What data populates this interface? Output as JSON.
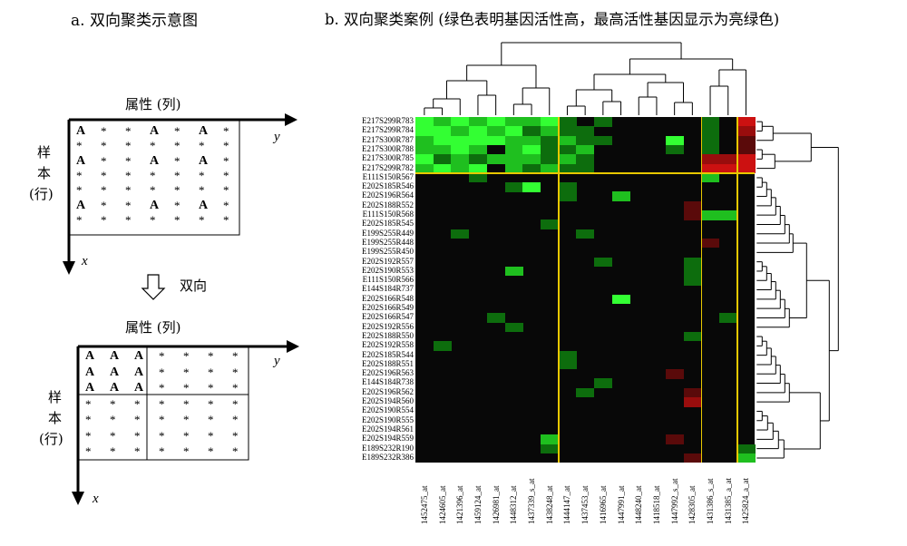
{
  "panel_a": {
    "title": "a. 双向聚类示意图",
    "top": {
      "attr_label": "属性 (列)",
      "sample_label_1": "样",
      "sample_label_2": "本",
      "sample_label_3": "(行)",
      "x_label": "x",
      "y_label": "y",
      "grid": [
        [
          "A",
          "*",
          "*",
          "A",
          "*",
          "A",
          "*"
        ],
        [
          "*",
          "*",
          "*",
          "*",
          "*",
          "*",
          "*"
        ],
        [
          "A",
          "*",
          "*",
          "A",
          "*",
          "A",
          "*"
        ],
        [
          "*",
          "*",
          "*",
          "*",
          "*",
          "*",
          "*"
        ],
        [
          "*",
          "*",
          "*",
          "*",
          "*",
          "*",
          "*"
        ],
        [
          "A",
          "*",
          "*",
          "A",
          "*",
          "A",
          "*"
        ],
        [
          "*",
          "*",
          "*",
          "*",
          "*",
          "*",
          "*"
        ]
      ]
    },
    "arrow_label": "双向",
    "bottom": {
      "attr_label": "属性 (列)",
      "sample_label_1": "样",
      "sample_label_2": "本",
      "sample_label_3": "(行)",
      "x_label": "x",
      "y_label": "y",
      "grid": [
        [
          "A",
          "A",
          "A",
          "*",
          "*",
          "*",
          "*"
        ],
        [
          "A",
          "A",
          "A",
          "*",
          "*",
          "*",
          "*"
        ],
        [
          "A",
          "A",
          "A",
          "*",
          "*",
          "*",
          "*"
        ],
        [
          "*",
          "*",
          "*",
          "*",
          "*",
          "*",
          "*"
        ],
        [
          "*",
          "*",
          "*",
          "*",
          "*",
          "*",
          "*"
        ],
        [
          "*",
          "*",
          "*",
          "*",
          "*",
          "*",
          "*"
        ],
        [
          "*",
          "*",
          "*",
          "*",
          "*",
          "*",
          "*"
        ]
      ]
    }
  },
  "panel_b": {
    "title": "b. 双向聚类案例 (绿色表明基因活性高，最高活性基因显示为亮绿色)",
    "row_labels": [
      "E217S299R783",
      "E217S299R784",
      "E217S300R787",
      "E217S300R788",
      "E217S300R785",
      "E217S299R782",
      "E111S150R567",
      "E202S185R546",
      "E202S196R564",
      "E202S188R552",
      "E111S150R568",
      "E202S185R545",
      "E199S255R449",
      "E199S255R448",
      "E199S255R450",
      "E202S192R557",
      "E202S190R553",
      "E111S150R566",
      "E144S184R737",
      "E202S166R548",
      "E202S166R549",
      "E202S166R547",
      "E202S192R556",
      "E202S188R550",
      "E202S192R558",
      "E202S185R544",
      "E202S188R551",
      "E202S196R563",
      "E144S184R738",
      "E202S196R562",
      "E202S194R560",
      "E202S190R554",
      "E202S190R555",
      "E202S194R561",
      "E202S194R559",
      "E189S232R190",
      "E189S232R386"
    ],
    "col_labels": [
      "1452475_at",
      "1424605_at",
      "1421396_at",
      "1459124_at",
      "1426981_at",
      "1448312_at",
      "1437339_s_at",
      "1438248_at",
      "1444147_at",
      "1437453_at",
      "1416965_at",
      "1447991_at",
      "1448240_at",
      "1418518_at",
      "1447992_s_at",
      "1428305_at",
      "1431386_s_at",
      "1431385_a_at",
      "1425824_a_at"
    ],
    "colors": {
      "bright_green": "#33ff33",
      "green": "#22aa22",
      "dark": "#080808",
      "red": "#cc1111",
      "yellow": "#e8c800"
    },
    "heatmap": [
      [
        3,
        2,
        3,
        2,
        3,
        2,
        2,
        3,
        1,
        0,
        1,
        0,
        0,
        0,
        0,
        0,
        1,
        0,
        -3
      ],
      [
        3,
        3,
        2,
        3,
        2,
        3,
        1,
        2,
        1,
        1,
        0,
        0,
        0,
        0,
        0,
        0,
        1,
        0,
        -2
      ],
      [
        2,
        3,
        3,
        3,
        3,
        2,
        2,
        1,
        2,
        1,
        1,
        0,
        0,
        0,
        3,
        0,
        1,
        0,
        -1
      ],
      [
        2,
        2,
        3,
        2,
        0,
        2,
        3,
        1,
        1,
        2,
        0,
        0,
        0,
        0,
        1,
        0,
        1,
        0,
        -1
      ],
      [
        3,
        1,
        2,
        1,
        2,
        2,
        2,
        1,
        2,
        1,
        0,
        0,
        0,
        0,
        0,
        0,
        -2,
        -2,
        -3
      ],
      [
        2,
        3,
        2,
        3,
        0,
        2,
        1,
        2,
        1,
        1,
        0,
        0,
        0,
        0,
        0,
        0,
        -3,
        -3,
        -3
      ],
      [
        0,
        0,
        0,
        1,
        0,
        0,
        0,
        0,
        0,
        0,
        0,
        0,
        0,
        0,
        0,
        0,
        2,
        0,
        0
      ],
      [
        0,
        0,
        0,
        0,
        0,
        1,
        3,
        0,
        1,
        0,
        0,
        0,
        0,
        0,
        0,
        0,
        0,
        0,
        0
      ],
      [
        0,
        0,
        0,
        0,
        0,
        0,
        0,
        0,
        1,
        0,
        0,
        2,
        0,
        0,
        0,
        0,
        0,
        0,
        0
      ],
      [
        0,
        0,
        0,
        0,
        0,
        0,
        0,
        0,
        0,
        0,
        0,
        0,
        0,
        0,
        0,
        -1,
        0,
        0,
        0
      ],
      [
        0,
        0,
        0,
        0,
        0,
        0,
        0,
        0,
        0,
        0,
        0,
        0,
        0,
        0,
        0,
        -1,
        2,
        2,
        0
      ],
      [
        0,
        0,
        0,
        0,
        0,
        0,
        0,
        1,
        0,
        0,
        0,
        0,
        0,
        0,
        0,
        0,
        0,
        0,
        0
      ],
      [
        0,
        0,
        1,
        0,
        0,
        0,
        0,
        0,
        0,
        1,
        0,
        0,
        0,
        0,
        0,
        0,
        0,
        0,
        0
      ],
      [
        0,
        0,
        0,
        0,
        0,
        0,
        0,
        0,
        0,
        0,
        0,
        0,
        0,
        0,
        0,
        0,
        -1,
        0,
        0
      ],
      [
        0,
        0,
        0,
        0,
        0,
        0,
        0,
        0,
        0,
        0,
        0,
        0,
        0,
        0,
        0,
        0,
        0,
        0,
        0
      ],
      [
        0,
        0,
        0,
        0,
        0,
        0,
        0,
        0,
        0,
        0,
        1,
        0,
        0,
        0,
        0,
        1,
        0,
        0,
        0
      ],
      [
        0,
        0,
        0,
        0,
        0,
        2,
        0,
        0,
        0,
        0,
        0,
        0,
        0,
        0,
        0,
        1,
        0,
        0,
        0
      ],
      [
        0,
        0,
        0,
        0,
        0,
        0,
        0,
        0,
        0,
        0,
        0,
        0,
        0,
        0,
        0,
        1,
        0,
        0,
        0
      ],
      [
        0,
        0,
        0,
        0,
        0,
        0,
        0,
        0,
        0,
        0,
        0,
        0,
        0,
        0,
        0,
        0,
        0,
        0,
        0
      ],
      [
        0,
        0,
        0,
        0,
        0,
        0,
        0,
        0,
        0,
        0,
        0,
        3,
        0,
        0,
        0,
        0,
        0,
        0,
        0
      ],
      [
        0,
        0,
        0,
        0,
        0,
        0,
        0,
        0,
        0,
        0,
        0,
        0,
        0,
        0,
        0,
        0,
        0,
        0,
        0
      ],
      [
        0,
        0,
        0,
        0,
        1,
        0,
        0,
        0,
        0,
        0,
        0,
        0,
        0,
        0,
        0,
        0,
        0,
        1,
        0
      ],
      [
        0,
        0,
        0,
        0,
        0,
        1,
        0,
        0,
        0,
        0,
        0,
        0,
        0,
        0,
        0,
        0,
        0,
        0,
        0
      ],
      [
        0,
        0,
        0,
        0,
        0,
        0,
        0,
        0,
        0,
        0,
        0,
        0,
        0,
        0,
        0,
        1,
        0,
        0,
        0
      ],
      [
        0,
        1,
        0,
        0,
        0,
        0,
        0,
        0,
        0,
        0,
        0,
        0,
        0,
        0,
        0,
        0,
        0,
        0,
        0
      ],
      [
        0,
        0,
        0,
        0,
        0,
        0,
        0,
        0,
        1,
        0,
        0,
        0,
        0,
        0,
        0,
        0,
        0,
        0,
        0
      ],
      [
        0,
        0,
        0,
        0,
        0,
        0,
        0,
        0,
        1,
        0,
        0,
        0,
        0,
        0,
        0,
        0,
        0,
        0,
        0
      ],
      [
        0,
        0,
        0,
        0,
        0,
        0,
        0,
        0,
        0,
        0,
        0,
        0,
        0,
        0,
        -1,
        0,
        0,
        0,
        0
      ],
      [
        0,
        0,
        0,
        0,
        0,
        0,
        0,
        0,
        0,
        0,
        1,
        0,
        0,
        0,
        0,
        0,
        0,
        0,
        0
      ],
      [
        0,
        0,
        0,
        0,
        0,
        0,
        0,
        0,
        0,
        1,
        0,
        0,
        0,
        0,
        0,
        -1,
        0,
        0,
        0
      ],
      [
        0,
        0,
        0,
        0,
        0,
        0,
        0,
        0,
        0,
        0,
        0,
        0,
        0,
        0,
        0,
        -2,
        0,
        0,
        0
      ],
      [
        0,
        0,
        0,
        0,
        0,
        0,
        0,
        0,
        0,
        0,
        0,
        0,
        0,
        0,
        0,
        0,
        0,
        0,
        0
      ],
      [
        0,
        0,
        0,
        0,
        0,
        0,
        0,
        0,
        0,
        0,
        0,
        0,
        0,
        0,
        0,
        0,
        0,
        0,
        0
      ],
      [
        0,
        0,
        0,
        0,
        0,
        0,
        0,
        0,
        0,
        0,
        0,
        0,
        0,
        0,
        0,
        0,
        0,
        0,
        0
      ],
      [
        0,
        0,
        0,
        0,
        0,
        0,
        0,
        2,
        0,
        0,
        0,
        0,
        0,
        0,
        -1,
        0,
        0,
        0,
        0
      ],
      [
        0,
        0,
        0,
        0,
        0,
        0,
        0,
        1,
        0,
        0,
        0,
        0,
        0,
        0,
        0,
        0,
        0,
        0,
        1
      ],
      [
        0,
        0,
        0,
        0,
        0,
        0,
        0,
        0,
        0,
        0,
        0,
        0,
        0,
        0,
        0,
        -1,
        0,
        0,
        2
      ]
    ],
    "column_cluster_breaks": [
      8,
      16,
      18
    ],
    "row_cluster_breaks": [
      6
    ]
  }
}
